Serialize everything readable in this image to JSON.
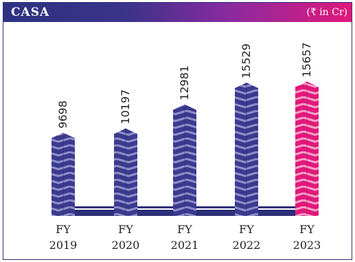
{
  "header": {
    "title": "CASA",
    "unit": "(₹ in Cr)"
  },
  "colors": {
    "bar": "#3b3a8f",
    "bar_light": "#8f8fc9",
    "highlight": "#e2197a",
    "highlight_light": "#f4a3c9",
    "base": "#2f2f7a"
  },
  "chart_data": {
    "type": "bar",
    "title": "CASA",
    "unit": "(₹ in Cr)",
    "categories": [
      "FY 2019",
      "FY 2020",
      "FY 2021",
      "FY 2022",
      "FY 2023"
    ],
    "category_lines": [
      [
        "FY",
        "2019"
      ],
      [
        "FY",
        "2020"
      ],
      [
        "FY",
        "2021"
      ],
      [
        "FY",
        "2022"
      ],
      [
        "FY",
        "2023"
      ]
    ],
    "values": [
      9698,
      10197,
      12981,
      15529,
      15657
    ],
    "value_labels": [
      "9698",
      "10197",
      "12981",
      "15529",
      "15657"
    ],
    "highlight_index": 4,
    "ylim": [
      0,
      16500
    ],
    "grid": false
  }
}
